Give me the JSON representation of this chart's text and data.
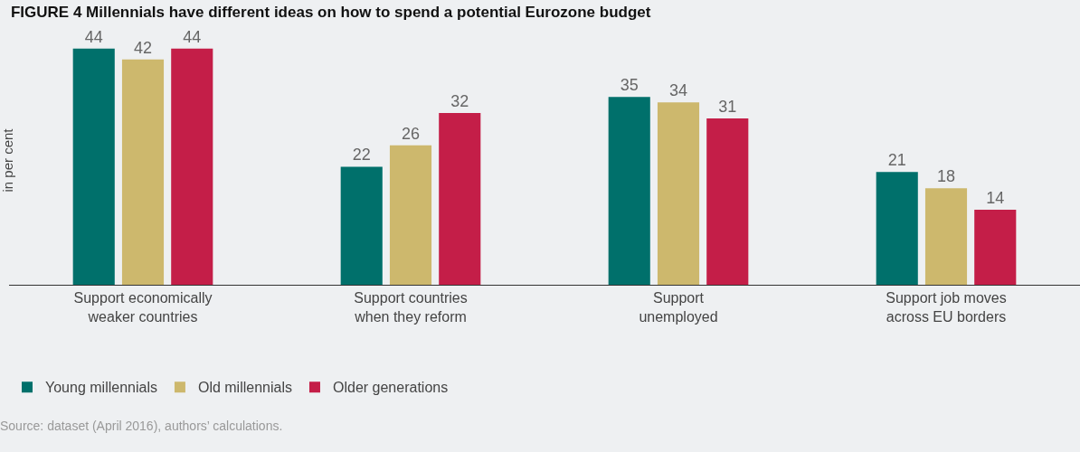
{
  "chart_data": {
    "type": "bar",
    "title": "FIGURE 4 Millennials have different ideas on how to spend a potential Eurozone budget",
    "ylabel": "in per cent",
    "categories": [
      "Support economically\nweaker countries",
      "Support countries\nwhen they reform",
      "Support\nunemployed",
      "Support job moves\nacross EU borders"
    ],
    "series": [
      {
        "name": "Young millennials",
        "color": "#00706b",
        "values": [
          44,
          22,
          35,
          21
        ]
      },
      {
        "name": "Old millennials",
        "color": "#cdb86d",
        "values": [
          42,
          26,
          34,
          18
        ]
      },
      {
        "name": "Older generations",
        "color": "#c41e48",
        "values": [
          44,
          32,
          31,
          14
        ]
      }
    ],
    "data_labels": true,
    "grid": false,
    "legend": "bottom left",
    "annotations": [
      "Source: dataset (April 2016), authors’ calculations."
    ]
  }
}
